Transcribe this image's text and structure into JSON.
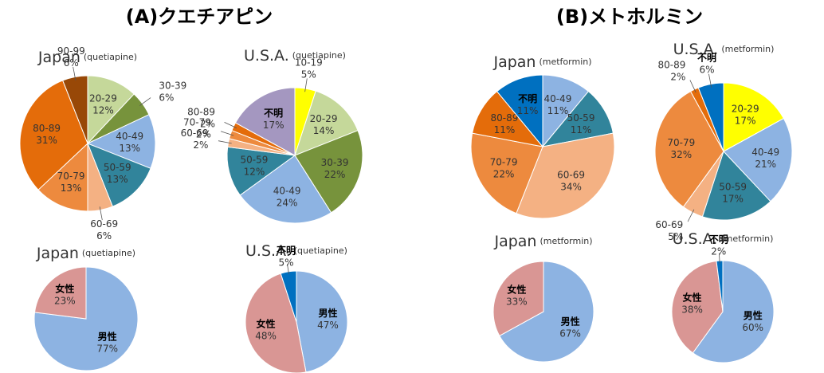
{
  "headings": [
    "(A)クエチアピン",
    "(B)メトホルミン"
  ],
  "chart_data": [
    {
      "type": "pie",
      "title": "Japan",
      "subtitle": "(quetiapine)",
      "categories": [
        "20-29",
        "30-39",
        "40-49",
        "50-59",
        "60-69",
        "70-79",
        "80-89",
        "90-99"
      ],
      "values": [
        12,
        6,
        13,
        13,
        6,
        13,
        31,
        6
      ],
      "value_labels": [
        "12%",
        "6%",
        "13%",
        "13%",
        "6%",
        "13%",
        "31%",
        "6%"
      ],
      "colors": [
        "#c5d89a",
        "#77933c",
        "#8db3e2",
        "#31849b",
        "#f4b183",
        "#ed8a3e",
        "#e46c0a",
        "#984807"
      ]
    },
    {
      "type": "pie",
      "title": "U.S.A.",
      "subtitle": "(quetiapine)",
      "categories": [
        "10-19",
        "20-29",
        "30-39",
        "40-49",
        "50-59",
        "60-69",
        "70-79",
        "80-89",
        "不明"
      ],
      "values": [
        5,
        14,
        22,
        24,
        12,
        2,
        2,
        2,
        17
      ],
      "value_labels": [
        "5%",
        "14%",
        "22%",
        "24%",
        "12%",
        "2%",
        "2%",
        "2%",
        "17%"
      ],
      "colors": [
        "#ffff00",
        "#c5d89a",
        "#77933c",
        "#8db3e2",
        "#31849b",
        "#f4b183",
        "#ed8a3e",
        "#e46c0a",
        "#a497c0"
      ]
    },
    {
      "type": "pie",
      "title": "Japan",
      "subtitle": "(metformin)",
      "categories": [
        "40-49",
        "50-59",
        "60-69",
        "70-79",
        "80-89",
        "不明"
      ],
      "values": [
        11,
        11,
        34,
        22,
        11,
        11
      ],
      "value_labels": [
        "11%",
        "11%",
        "34%",
        "22%",
        "11%",
        "11%"
      ],
      "colors": [
        "#8db3e2",
        "#31849b",
        "#f4b183",
        "#ed8a3e",
        "#e46c0a",
        "#0070c0"
      ]
    },
    {
      "type": "pie",
      "title": "U.S.A.",
      "subtitle": "(metformin)",
      "categories": [
        "20-29",
        "40-49",
        "50-59",
        "60-69",
        "70-79",
        "80-89",
        "不明"
      ],
      "values": [
        17,
        21,
        17,
        5,
        32,
        2,
        6
      ],
      "value_labels": [
        "17%",
        "21%",
        "17%",
        "5%",
        "32%",
        "2%",
        "6%"
      ],
      "colors": [
        "#ffff00",
        "#8db3e2",
        "#31849b",
        "#f4b183",
        "#ed8a3e",
        "#e46c0a",
        "#0070c0"
      ]
    },
    {
      "type": "pie",
      "title": "Japan",
      "subtitle": "(quetiapine)",
      "categories": [
        "男性",
        "女性"
      ],
      "values": [
        77,
        23
      ],
      "value_labels": [
        "77%",
        "23%"
      ],
      "colors": [
        "#8db3e2",
        "#d99694"
      ]
    },
    {
      "type": "pie",
      "title": "U.S.A.",
      "subtitle": "(quetiapine)",
      "categories": [
        "男性",
        "女性",
        "不明"
      ],
      "values": [
        47,
        48,
        5
      ],
      "value_labels": [
        "47%",
        "48%",
        "5%"
      ],
      "colors": [
        "#8db3e2",
        "#d99694",
        "#0070c0"
      ]
    },
    {
      "type": "pie",
      "title": "Japan",
      "subtitle": "(metformin)",
      "categories": [
        "男性",
        "女性"
      ],
      "values": [
        67,
        33
      ],
      "value_labels": [
        "67%",
        "33%"
      ],
      "colors": [
        "#8db3e2",
        "#d99694"
      ]
    },
    {
      "type": "pie",
      "title": "U.S.A.",
      "subtitle": "(metformin)",
      "categories": [
        "男性",
        "女性",
        "不明"
      ],
      "values": [
        60,
        38,
        2
      ],
      "value_labels": [
        "60%",
        "38%",
        "2%"
      ],
      "colors": [
        "#8db3e2",
        "#d99694",
        "#0070c0"
      ]
    }
  ]
}
